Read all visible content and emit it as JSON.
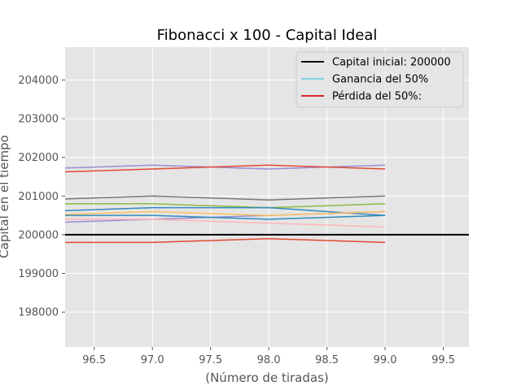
{
  "chart_data": {
    "type": "line",
    "title": "Fibonacci x 100 - Capital Ideal",
    "xlabel": "(Número de tiradas)",
    "ylabel": "Capital en el tiempo",
    "xlim": [
      96.25,
      99.72
    ],
    "ylim": [
      197100,
      204850
    ],
    "xticks": [
      "96.5",
      "97.0",
      "97.5",
      "98.0",
      "98.5",
      "99.0",
      "99.5"
    ],
    "yticks": [
      "198000",
      "199000",
      "200000",
      "201000",
      "202000",
      "203000",
      "204000"
    ],
    "grid": true,
    "legend": {
      "placement": "top-right",
      "entries": [
        {
          "label": "Capital inicial: 200000",
          "color": "#000000"
        },
        {
          "label": "Ganancia del 50%",
          "color": "#17becf"
        },
        {
          "label": "Pérdida del 50%:",
          "color": "#d62728"
        }
      ]
    },
    "reference_line": {
      "y": 200000,
      "color": "#000000"
    },
    "x": [
      96.0,
      97.0,
      98.0,
      99.0
    ],
    "series": [
      {
        "color": "#988ed5",
        "values": [
          201700,
          201800,
          201700,
          201800
        ]
      },
      {
        "color": "#e24a33",
        "values": [
          201600,
          201700,
          201800,
          201700
        ]
      },
      {
        "color": "#777777",
        "values": [
          200900,
          201000,
          200900,
          201000
        ]
      },
      {
        "color": "#8eba42",
        "values": [
          200800,
          200800,
          200700,
          200800
        ]
      },
      {
        "color": "#348abd",
        "values": [
          200600,
          200700,
          200700,
          200500
        ]
      },
      {
        "color": "#988ed5",
        "values": [
          200300,
          200400,
          200500,
          200600
        ]
      },
      {
        "color": "#fbc15e",
        "values": [
          200500,
          200600,
          200500,
          200600
        ]
      },
      {
        "color": "#348abd",
        "values": [
          200500,
          200500,
          200400,
          200500
        ]
      },
      {
        "color": "#ffb5b8",
        "values": [
          200400,
          200400,
          200300,
          200200
        ]
      },
      {
        "color": "#e24a33",
        "values": [
          199800,
          199800,
          199900,
          199800
        ]
      }
    ]
  }
}
